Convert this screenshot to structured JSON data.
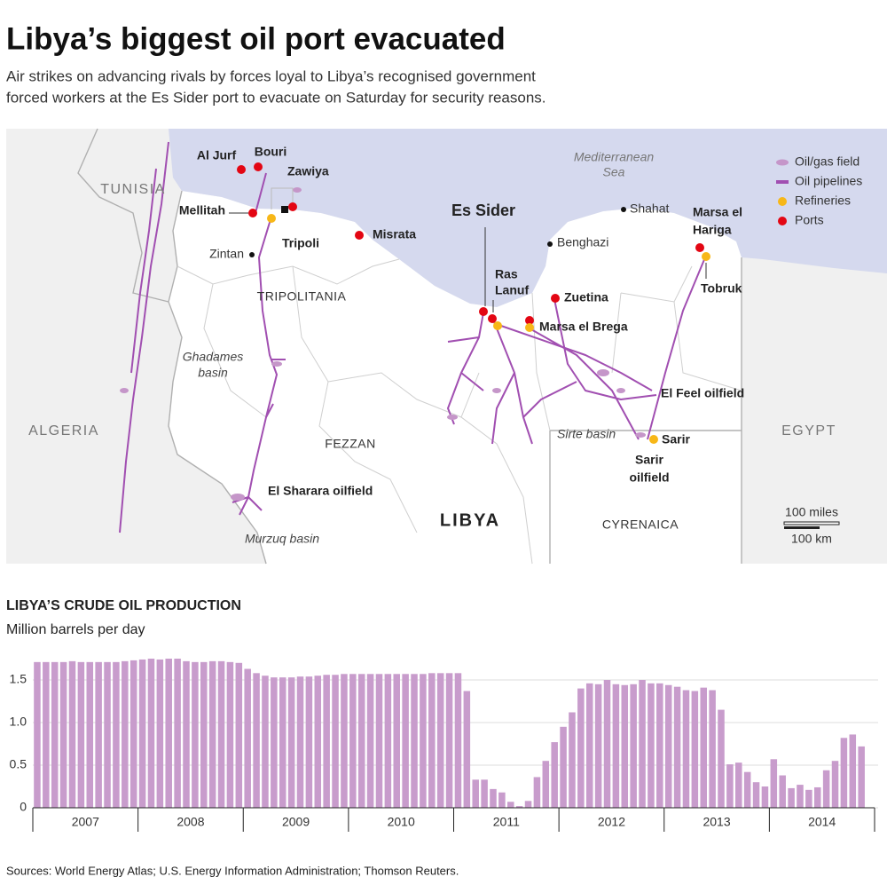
{
  "header": {
    "title": "Libya’s biggest oil port evacuated",
    "subtitle": [
      "Air strikes on advancing rivals by forces loyal to Libya’s recognised government",
      "forced workers at the Es Sider port to evacuate on Saturday for security reasons."
    ]
  },
  "map": {
    "labels": [
      [
        "TUNISIA"
      ],
      [
        "ALGERIA"
      ],
      [
        "EGYPT"
      ],
      [
        "Mediterranean",
        "Sea"
      ],
      [
        "Al Jurf"
      ],
      [
        "Bouri"
      ],
      [
        "Zawiya"
      ],
      [
        "Mellitah"
      ],
      [
        "Tripoli"
      ],
      [
        "Misrata"
      ],
      [
        "Zintan"
      ],
      [
        "TRIPOLITANIA"
      ],
      [
        "Ghadames",
        "basin"
      ],
      [
        "FEZZAN"
      ],
      [
        "El Sharara oilfield"
      ],
      [
        "Murzuq basin"
      ],
      [
        "LIBYA"
      ],
      [
        "CYRENAICA"
      ],
      [
        "Es Sider"
      ],
      [
        "Ras",
        "Lanuf"
      ],
      [
        "Zuetina"
      ],
      [
        "Marsa el Brega"
      ],
      [
        "Benghazi"
      ],
      [
        "Shahat"
      ],
      [
        "Marsa el",
        "Hariga"
      ],
      [
        "Tobruk"
      ],
      [
        "El Feel oilfield"
      ],
      [
        "Sirte basin"
      ],
      [
        "Sarir"
      ],
      [
        "Sarir",
        "oilfield"
      ]
    ],
    "legend": [
      "Oil/gas field",
      "Oil pipelines",
      "Refineries",
      "Ports"
    ],
    "scale": [
      "100 miles",
      "100 km"
    ]
  },
  "chart_data": {
    "type": "bar",
    "title": "LIBYA’S CRUDE OIL PRODUCTION",
    "subtitle": "Million barrels per day",
    "color": "#c89ccc",
    "categories": [
      "2007",
      null,
      null,
      null,
      null,
      null,
      null,
      null,
      null,
      null,
      null,
      null,
      "2008",
      null,
      null,
      null,
      null,
      null,
      null,
      null,
      null,
      null,
      null,
      null,
      "2009",
      null,
      null,
      null,
      null,
      null,
      null,
      null,
      null,
      null,
      null,
      null,
      "2010",
      null,
      null,
      null,
      null,
      null,
      null,
      null,
      null,
      null,
      null,
      null,
      "2011",
      null,
      null,
      null,
      null,
      null,
      null,
      null,
      null,
      null,
      null,
      null,
      "2012",
      null,
      null,
      null,
      null,
      null,
      null,
      null,
      null,
      null,
      null,
      null,
      "2013",
      null,
      null,
      null,
      null,
      null,
      null,
      null,
      null,
      null,
      null,
      null,
      "2014",
      null,
      null,
      null,
      null,
      null,
      null,
      null,
      null,
      null,
      null
    ],
    "values": [
      1.71,
      1.71,
      1.71,
      1.71,
      1.72,
      1.71,
      1.71,
      1.71,
      1.71,
      1.71,
      1.72,
      1.73,
      1.74,
      1.75,
      1.74,
      1.75,
      1.75,
      1.72,
      1.71,
      1.71,
      1.72,
      1.72,
      1.71,
      1.7,
      1.63,
      1.58,
      1.55,
      1.53,
      1.53,
      1.53,
      1.54,
      1.54,
      1.55,
      1.56,
      1.56,
      1.57,
      1.57,
      1.57,
      1.57,
      1.57,
      1.57,
      1.57,
      1.57,
      1.57,
      1.57,
      1.58,
      1.58,
      1.58,
      1.58,
      1.37,
      0.33,
      0.33,
      0.22,
      0.18,
      0.07,
      0.02,
      0.08,
      0.36,
      0.55,
      0.77,
      0.95,
      1.12,
      1.4,
      1.46,
      1.45,
      1.5,
      1.45,
      1.44,
      1.45,
      1.5,
      1.46,
      1.46,
      1.44,
      1.42,
      1.38,
      1.37,
      1.41,
      1.38,
      1.15,
      0.51,
      0.53,
      0.42,
      0.3,
      0.25,
      0.57,
      0.38,
      0.23,
      0.27,
      0.21,
      0.24,
      0.44,
      0.55,
      0.82,
      0.86,
      0.72
    ],
    "ylim": [
      0,
      1.75
    ],
    "yticks": [
      0,
      0.5,
      {
        "value": 1,
        "label": "1.0"
      },
      1.5
    ],
    "grid": true
  },
  "footer": {
    "source": "Sources: World Energy Atlas; U.S. Energy Information Administration; Thomson Reuters."
  }
}
